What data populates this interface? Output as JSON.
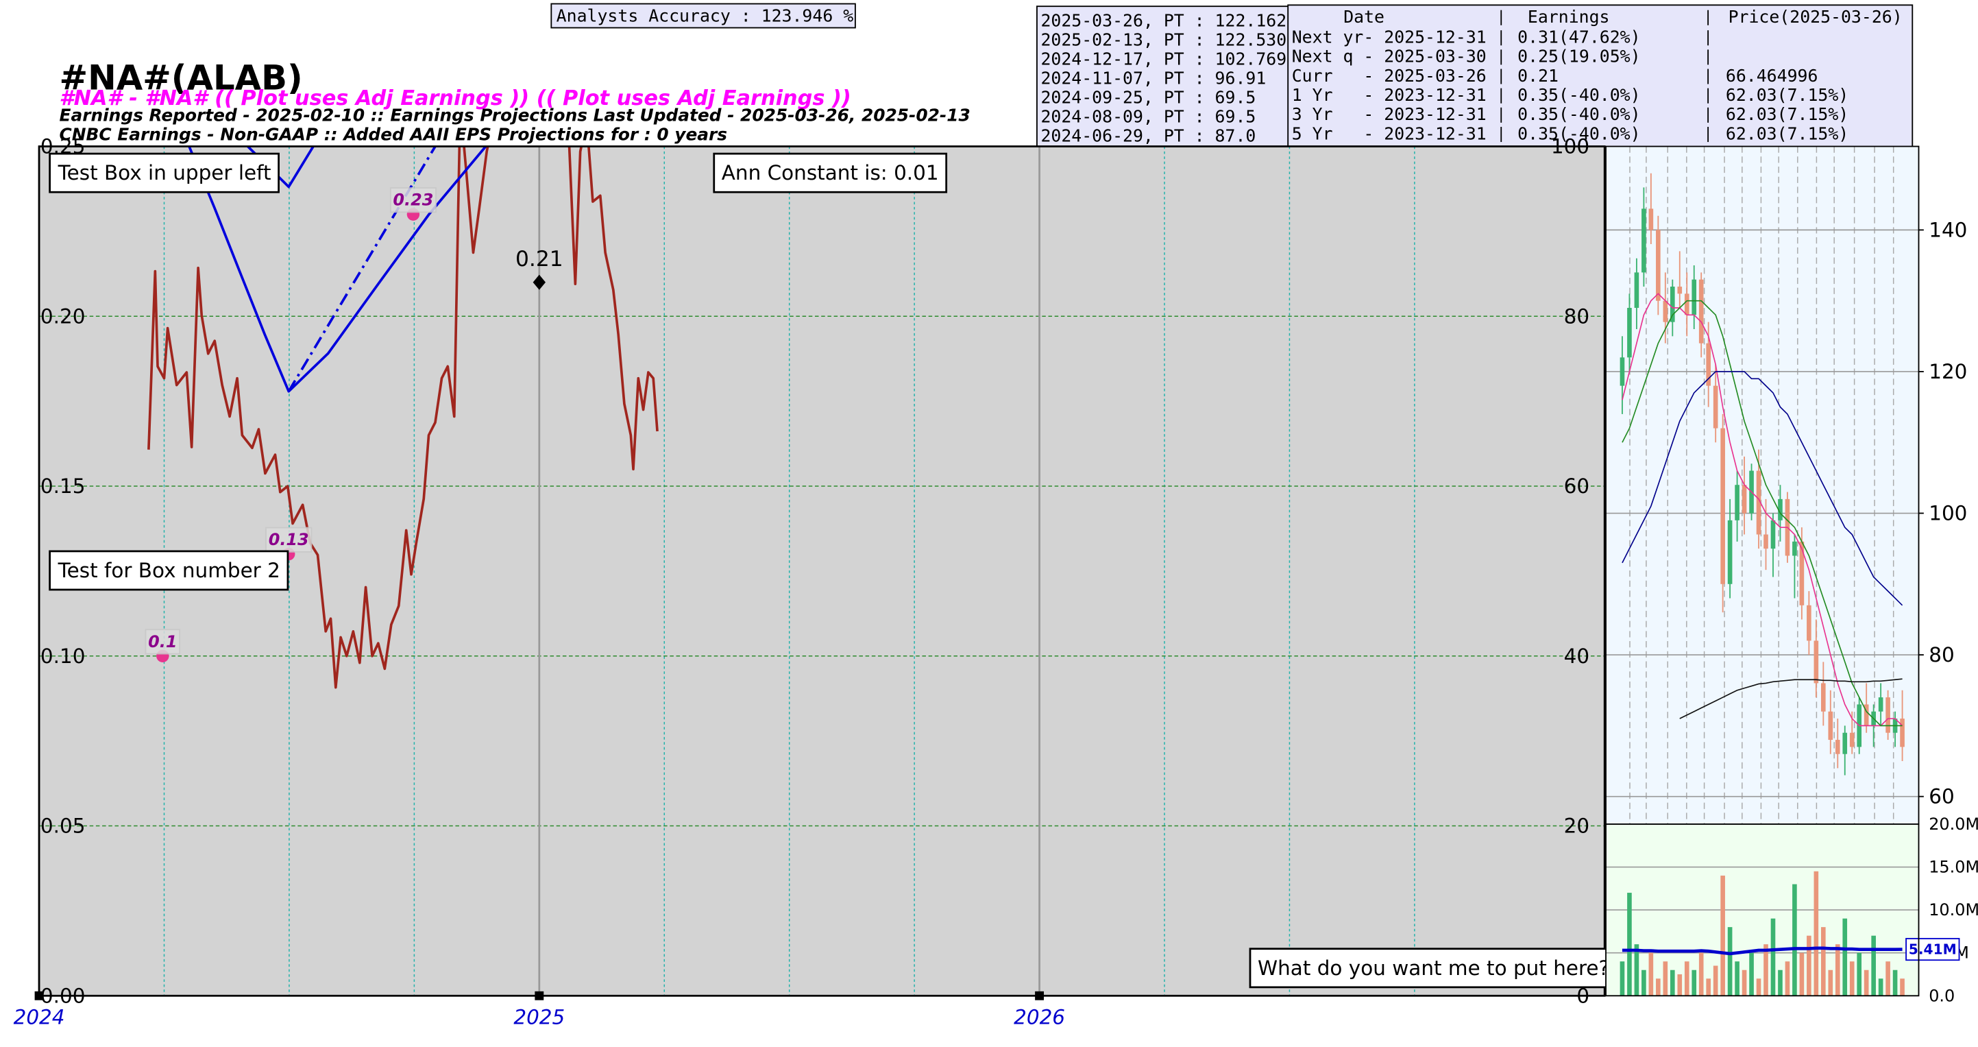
{
  "analysts_accuracy": "Analysts Accuracy : 123.946 %",
  "pt_table": [
    "2025-03-26, PT : 122.162",
    "2025-02-13, PT : 122.530",
    "2024-12-17, PT : 102.769",
    "2024-11-07, PT : 96.91",
    "2024-09-25, PT : 69.5",
    "2024-08-09, PT : 69.5",
    "2024-06-29, PT : 87.0"
  ],
  "earnings_table": {
    "header": [
      "Date",
      "Earnings",
      "Price(2025-03-26)"
    ],
    "rows": [
      [
        "Next yr- 2025-12-31",
        "0.31(47.62%)"
      ],
      [
        "Next q - 2025-03-30",
        "0.25(19.05%)"
      ],
      [
        "Curr   - 2025-03-26",
        "0.21",
        "66.464996"
      ],
      [
        "1 Yr   - 2023-12-31",
        "0.35(-40.0%)",
        "62.03(7.15%)"
      ],
      [
        "3 Yr   - 2023-12-31",
        "0.35(-40.0%)",
        "62.03(7.15%)"
      ],
      [
        "5 Yr   - 2023-12-31",
        "0.35(-40.0%)",
        "62.03(7.15%)"
      ]
    ]
  },
  "chart_data": [
    {
      "type": "line",
      "title": "#NA#(ALAB)",
      "subtitle": "#NA# - #NA# (( Plot uses Adj Earnings )) (( Plot uses Adj Earnings ))",
      "notes": [
        "Earnings Reported - 2025-02-10 :: Earnings Projections Last Updated - 2025-03-26, 2025-02-13",
        "CNBC Earnings - Non-GAAP :: Added AAII EPS Projections for : 0 years"
      ],
      "xlim": [
        2024,
        2027.13
      ],
      "xticks": [
        2024,
        2025,
        2026
      ],
      "x_minor_ticks": [
        2024.25,
        2024.5,
        2024.75,
        2025.25,
        2025.5,
        2025.75,
        2026.25,
        2026.5,
        2026.75
      ],
      "ylim": [
        0,
        0.25
      ],
      "yticks": [
        {
          "value": 0,
          "label": "0.00"
        },
        {
          "value": 0.05,
          "label": "0.05"
        },
        {
          "value": 0.1,
          "label": "0.10"
        },
        {
          "value": 0.15,
          "label": "0.15"
        },
        {
          "value": 0.2,
          "label": "0.20"
        },
        {
          "value": 0.25,
          "label": "0.25"
        }
      ],
      "y2lim": [
        0,
        100
      ],
      "y2ticks": [
        0,
        20,
        40,
        60,
        80,
        100
      ],
      "grid": true,
      "series": [
        {
          "type": "line",
          "axis": "y2",
          "color": "#a0261e",
          "x": [
            2024.219,
            2024.232,
            2024.237,
            2024.25,
            2024.257,
            2024.275,
            2024.295,
            2024.305,
            2024.318,
            2024.325,
            2024.338,
            2024.351,
            2024.366,
            2024.381,
            2024.396,
            2024.406,
            2024.426,
            2024.439,
            2024.452,
            2024.472,
            2024.482,
            2024.497,
            2024.507,
            2024.527,
            2024.542,
            2024.557,
            2024.573,
            2024.583,
            2024.593,
            2024.603,
            2024.615,
            2024.628,
            2024.641,
            2024.653,
            2024.666,
            2024.678,
            2024.691,
            2024.704,
            2024.719,
            2024.734,
            2024.744,
            2024.754,
            2024.769,
            2024.779,
            2024.792,
            2024.805,
            2024.817,
            2024.83,
            2024.842,
            2024.855,
            2024.868,
            2024.88,
            2024.895,
            2024.911,
            2024.931,
            2024.956,
            2024.981,
            2025.032,
            2025.057,
            2025.072,
            2025.082,
            2025.095,
            2025.107,
            2025.122,
            2025.132,
            2025.148,
            2025.158,
            2025.17,
            2025.183,
            2025.188,
            2025.198,
            2025.208,
            2025.218,
            2025.228,
            2025.236
          ],
          "values": [
            64.3,
            85.3,
            74.1,
            72.7,
            78.6,
            71.9,
            73.4,
            64.6,
            85.7,
            80.1,
            75.6,
            77.1,
            71.9,
            68.2,
            72.7,
            66.0,
            64.5,
            66.7,
            61.5,
            63.7,
            59.3,
            60.0,
            55.6,
            57.8,
            53.3,
            51.9,
            42.9,
            44.4,
            36.3,
            42.2,
            40.0,
            42.9,
            39.2,
            48.1,
            40.0,
            41.5,
            38.5,
            43.7,
            45.9,
            54.8,
            49.6,
            53.3,
            58.5,
            66.0,
            67.5,
            72.7,
            74.1,
            68.2,
            105,
            96.4,
            87.5,
            92.7,
            99.4,
            104,
            108,
            106,
            110,
            109,
            104,
            83.8,
            99.4,
            103,
            93.5,
            94.2,
            87.5,
            83.1,
            77.9,
            69.7,
            66.0,
            62.0,
            72.7,
            69.0,
            73.4,
            72.7,
            66.46
          ]
        },
        {
          "type": "line",
          "color": "#0000dd",
          "x": [
            2024.376,
            2024.499,
            2024.573
          ],
          "values": [
            0.256,
            0.2381,
            0.256
          ]
        },
        {
          "type": "line",
          "color": "#0000dd",
          "x": [
            2024.237,
            2024.3,
            2024.351,
            2024.401,
            2024.451,
            2024.499,
            2024.578,
            2024.678,
            2024.779,
            2024.893,
            2024.918
          ],
          "values": [
            0.256,
            0.25,
            0.2318,
            0.2132,
            0.1947,
            0.1779,
            0.1891,
            0.2095,
            0.2299,
            0.25,
            0.256
          ]
        },
        {
          "type": "line",
          "color": "#0000dd",
          "style": "dashdot",
          "x": [
            2024.499,
            2024.792,
            2024.817
          ],
          "values": [
            0.1779,
            0.25,
            0.256
          ]
        },
        {
          "type": "scatter",
          "marker": "circle",
          "color": "#e8338f",
          "label_color": "#8b008b",
          "x": [
            2024.247,
            2024.499,
            2024.748
          ],
          "values": [
            0.1,
            0.13,
            0.23
          ]
        },
        {
          "type": "scatter",
          "marker": "diamond",
          "color": "#000000",
          "label_color": "#000000",
          "x": [
            2025.0
          ],
          "values": [
            0.21
          ]
        }
      ],
      "annotations": [
        "Test Box in upper left",
        "Test for Box number 2",
        "Ann Constant is: 0.01",
        "What do you want me to put here?"
      ]
    },
    {
      "type": "candlestick",
      "ylim": [
        56.1,
        151.8
      ],
      "yticks": [
        60,
        80,
        100,
        120,
        140
      ],
      "up_color": "#3cb371",
      "down_color": "#e9967a",
      "open": [
        118,
        122,
        129,
        134,
        143,
        140,
        130,
        127,
        132,
        131,
        128,
        133,
        124,
        118,
        112,
        90,
        99,
        104,
        100,
        106,
        97,
        95,
        99,
        102,
        94,
        96,
        87,
        82,
        76,
        72,
        68,
        66,
        69,
        67,
        73,
        70,
        72,
        74,
        69,
        71
      ],
      "high": [
        125,
        131,
        136,
        146,
        148,
        142,
        134,
        133,
        137,
        134,
        135,
        134,
        127,
        121,
        114,
        102,
        106,
        108,
        107,
        109,
        102,
        100,
        104,
        103,
        97,
        98,
        89,
        85,
        79,
        75,
        71,
        70,
        72,
        74,
        76,
        73,
        76,
        75,
        72,
        75
      ],
      "low": [
        114,
        120,
        126,
        132,
        138,
        128,
        124,
        125,
        129,
        125,
        126,
        122,
        115,
        110,
        86,
        88,
        96,
        97,
        99,
        95,
        92,
        91,
        96,
        93,
        88,
        85,
        80,
        74,
        70,
        66,
        64,
        63,
        66,
        66,
        69,
        67,
        70,
        68,
        67,
        65
      ],
      "close": [
        122,
        129,
        134,
        143,
        140,
        130,
        127,
        132,
        131,
        128,
        133,
        124,
        118,
        112,
        90,
        99,
        104,
        100,
        106,
        97,
        95,
        99,
        102,
        94,
        96,
        87,
        82,
        76,
        72,
        68,
        66,
        69,
        67,
        73,
        70,
        72,
        74,
        69,
        71,
        67
      ],
      "lines": [
        {
          "color": "#e8338f",
          "values": [
            116,
            120,
            124,
            128,
            130,
            131,
            130,
            129,
            129,
            128,
            128,
            127,
            125,
            121,
            115,
            110,
            106,
            104,
            103,
            102,
            100,
            99,
            98,
            98,
            97,
            95,
            92,
            88,
            84,
            80,
            76,
            73,
            71,
            70,
            70,
            70,
            70,
            71,
            71,
            70
          ]
        },
        {
          "color": "#228b22",
          "values": [
            110,
            112,
            115,
            118,
            121,
            124,
            126,
            128,
            129,
            130,
            130,
            130,
            129,
            128,
            125,
            121,
            117,
            113,
            110,
            107,
            104,
            102,
            100,
            99,
            98,
            96,
            94,
            91,
            88,
            85,
            82,
            79,
            76,
            74,
            72,
            71,
            70,
            70,
            70,
            70
          ]
        },
        {
          "color": "#00008b",
          "values": [
            93,
            95,
            97,
            99,
            101,
            104,
            107,
            110,
            113,
            115,
            117,
            118,
            119,
            120,
            120,
            120,
            120,
            120,
            119,
            119,
            118,
            117,
            115,
            114,
            112,
            110,
            108,
            106,
            104,
            102,
            100,
            98,
            97,
            95,
            93,
            91,
            90,
            89,
            88,
            87
          ]
        },
        {
          "color": "#111111",
          "values": [
            null,
            null,
            null,
            null,
            null,
            null,
            null,
            null,
            71,
            71.5,
            72,
            72.5,
            73,
            73.5,
            74,
            74.5,
            75,
            75.3,
            75.6,
            75.9,
            76,
            76.2,
            76.3,
            76.4,
            76.5,
            76.5,
            76.5,
            76.5,
            76.4,
            76.4,
            76.3,
            76.3,
            76.2,
            76.2,
            76.2,
            76.3,
            76.3,
            76.4,
            76.5,
            76.6
          ]
        }
      ]
    },
    {
      "type": "bar",
      "ylim": [
        0,
        20000000
      ],
      "yticks": [
        {
          "value": 0,
          "label": "0.0"
        },
        {
          "value": 5000000,
          "label": "5.0M"
        },
        {
          "value": 10000000,
          "label": "10.0M"
        },
        {
          "value": 15000000,
          "label": "15.0M"
        },
        {
          "value": 20000000,
          "label": "20.0M"
        }
      ],
      "values": [
        4000000,
        12000000,
        6000000,
        3000000,
        5000000,
        2000000,
        4000000,
        3000000,
        2500000,
        4000000,
        3000000,
        5000000,
        2000000,
        3500000,
        14000000,
        8000000,
        4000000,
        3000000,
        5000000,
        2000000,
        6000000,
        9000000,
        3000000,
        4000000,
        13000000,
        5000000,
        7000000,
        14500000,
        8000000,
        3000000,
        6000000,
        9000000,
        4000000,
        5000000,
        3000000,
        7000000,
        2000000,
        4000000,
        3000000,
        2000000
      ],
      "average": {
        "color": "#0000cd",
        "values": [
          5300000,
          5300000,
          5300000,
          5250000,
          5250000,
          5200000,
          5200000,
          5200000,
          5200000,
          5200000,
          5200000,
          5250000,
          5200000,
          5100000,
          5000000,
          4900000,
          5000000,
          5100000,
          5200000,
          5300000,
          5300000,
          5350000,
          5400000,
          5450000,
          5500000,
          5500000,
          5500000,
          5550000,
          5550000,
          5500000,
          5500000,
          5450000,
          5450000,
          5400000,
          5400000,
          5400000,
          5400000,
          5400000,
          5400000,
          5410000
        ],
        "value_labels": [
          null,
          null,
          null,
          null,
          null,
          null,
          null,
          null,
          null,
          null,
          null,
          null,
          null,
          null,
          null,
          null,
          null,
          null,
          null,
          null,
          null,
          null,
          null,
          null,
          null,
          null,
          null,
          null,
          null,
          null,
          null,
          null,
          null,
          null,
          null,
          null,
          null,
          null,
          null,
          "5.41M"
        ]
      }
    }
  ]
}
